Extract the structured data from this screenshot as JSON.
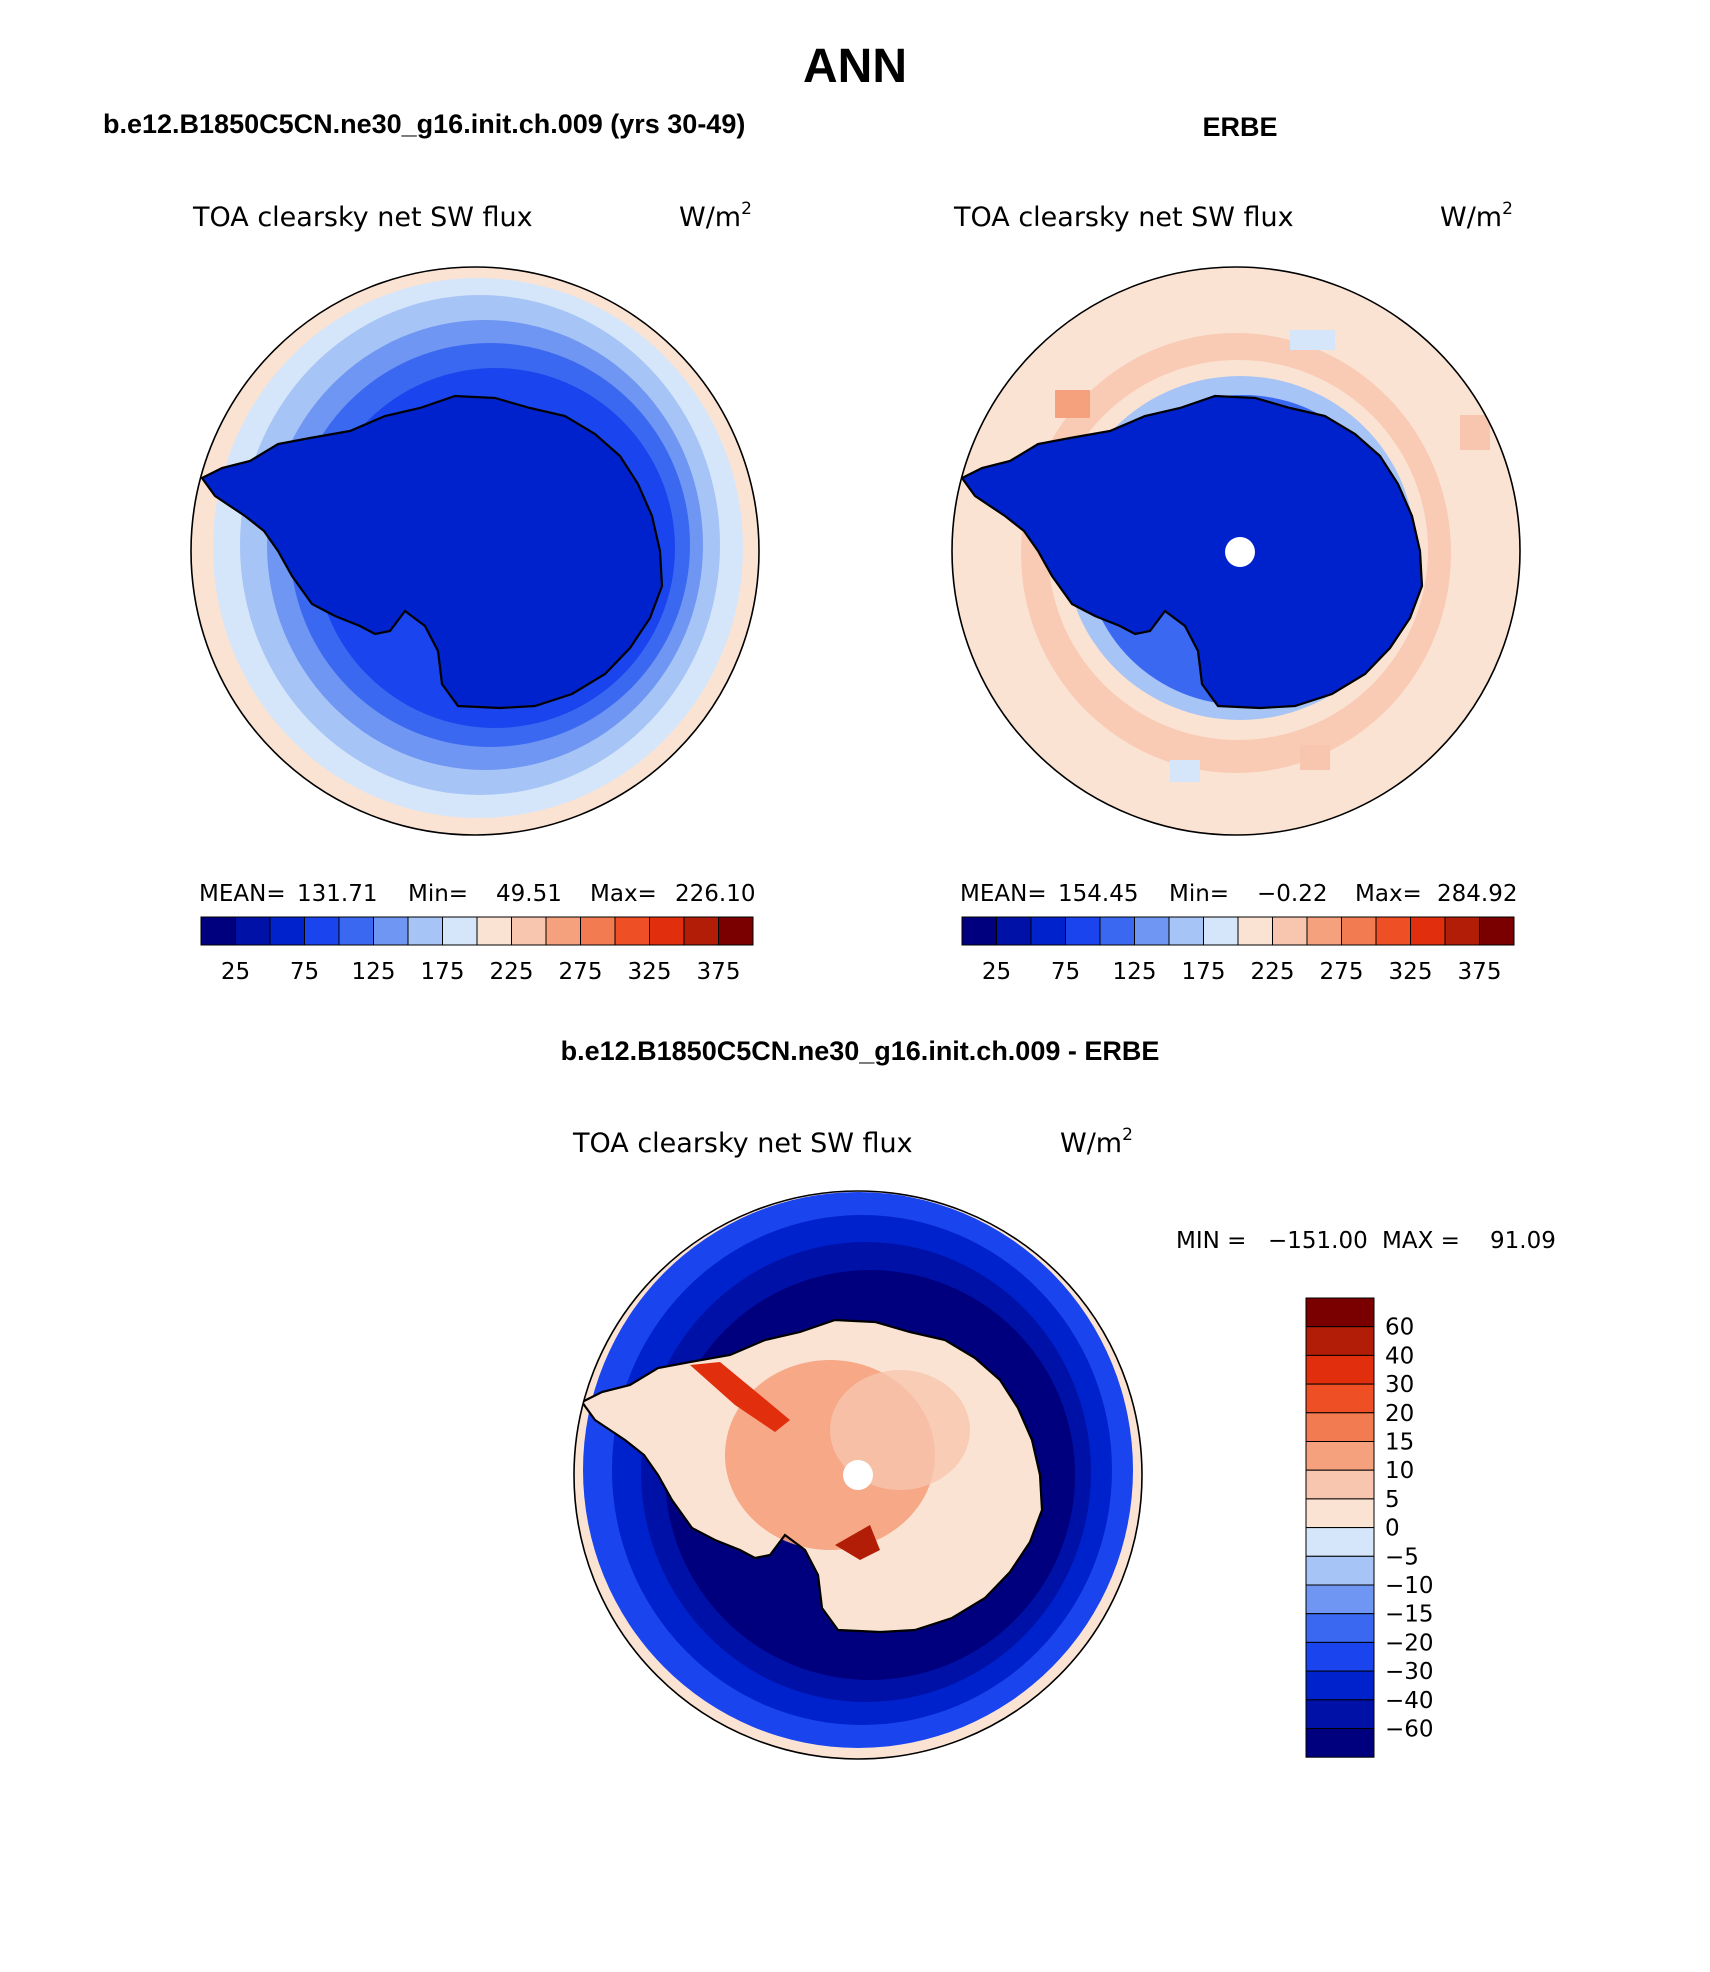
{
  "figure_title": "ANN",
  "colors": {
    "abs_scale": [
      "#00007f",
      "#0011a8",
      "#0022cc",
      "#1a44ee",
      "#3a68f0",
      "#6f96f2",
      "#a6c4f5",
      "#d5e6fa",
      "#fbe3d3",
      "#f8c6ae",
      "#f5a17e",
      "#f27b52",
      "#ef4f24",
      "#e12e0c",
      "#b21d07",
      "#7a0000"
    ],
    "diff_scale": [
      "#00007f",
      "#0011a8",
      "#0022cc",
      "#1a44ee",
      "#3a68f0",
      "#6f96f2",
      "#a6c4f5",
      "#d5e6fa",
      "#fbe3d3",
      "#f8c6ae",
      "#f5a17e",
      "#f27b52",
      "#ef4f24",
      "#e12e0c",
      "#b21d07",
      "#7a0000"
    ],
    "land_outline": "#000000",
    "pole_fill": "#ffffff"
  },
  "panels": [
    {
      "header": "b.e12.B1850C5CN.ne30_g16.init.ch.009 (yrs 30-49)",
      "variable": "TOA clearsky net SW flux",
      "units_base": "W/m",
      "units_exp": "2",
      "stats": {
        "mean_label": "MEAN=",
        "mean": "131.71",
        "min_label": "Min=",
        "min": "49.51",
        "max_label": "Max=",
        "max": "226.10"
      },
      "colorbar_ticks": [
        "25",
        "75",
        "125",
        "175",
        "225",
        "275",
        "325",
        "375"
      ]
    },
    {
      "header": "ERBE",
      "variable": "TOA clearsky net SW flux",
      "units_base": "W/m",
      "units_exp": "2",
      "stats": {
        "mean_label": "MEAN=",
        "mean": "154.45",
        "min_label": "Min=",
        "min": "−0.22",
        "max_label": "Max=",
        "max": "284.92"
      },
      "colorbar_ticks": [
        "25",
        "75",
        "125",
        "175",
        "225",
        "275",
        "325",
        "375"
      ]
    },
    {
      "header": "b.e12.B1850C5CN.ne30_g16.init.ch.009 - ERBE",
      "variable": "TOA clearsky net SW flux",
      "units_base": "W/m",
      "units_exp": "2",
      "stats": {
        "min_label": "MIN =",
        "min": "−151.00",
        "max_label": "MAX =",
        "max": "91.09"
      },
      "colorbar_ticks": [
        "60",
        "40",
        "30",
        "20",
        "15",
        "10",
        "5",
        "0",
        "−5",
        "−10",
        "−15",
        "−20",
        "−30",
        "−40",
        "−60"
      ]
    }
  ]
}
